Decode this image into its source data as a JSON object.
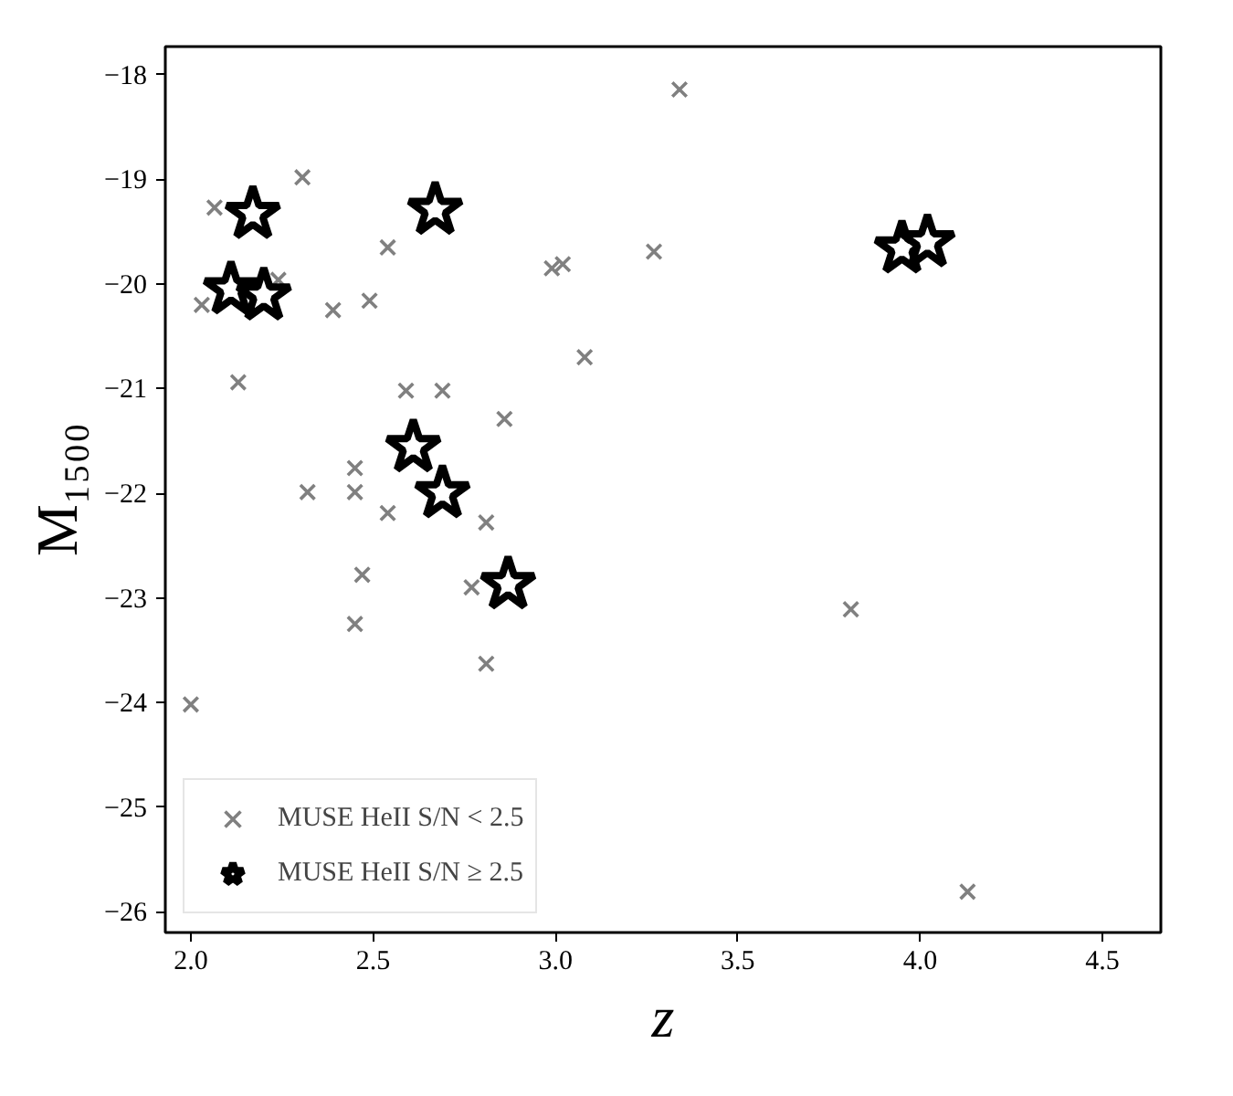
{
  "chart_data": {
    "type": "scatter",
    "xlabel": "z",
    "ylabel": "M₁₅₀₀",
    "xlim": [
      1.93,
      4.66
    ],
    "ylim": [
      -26.2,
      -17.73
    ],
    "xticks": [
      {
        "value": 2,
        "label": "2.0"
      },
      2.5,
      {
        "value": 3,
        "label": "3.0"
      },
      3.5,
      {
        "value": 4,
        "label": "4.0"
      },
      4.5
    ],
    "yticks": [
      {
        "value": -18,
        "label": "−18"
      },
      {
        "value": -19,
        "label": "−19"
      },
      {
        "value": -20,
        "label": "−20"
      },
      {
        "value": -21,
        "label": "−21"
      },
      {
        "value": -22,
        "label": "−22"
      },
      {
        "value": -23,
        "label": "−23"
      },
      {
        "value": -24,
        "label": "−24"
      },
      {
        "value": -25,
        "label": "−25"
      },
      {
        "value": -26,
        "label": "−26"
      }
    ],
    "grid": false,
    "legend": "bottom left",
    "series": [
      {
        "name": "MUSE HeII S/N < 2.5",
        "color": "#808080",
        "marker": "cross",
        "x": [
          2.065,
          2.306,
          2.03,
          2.24,
          2.54,
          2.39,
          2.49,
          2.13,
          2.59,
          2.69,
          2.86,
          2.99,
          3.02,
          3.27,
          3.08,
          3.34,
          2.45,
          2.32,
          2.45,
          2.54,
          2.81,
          2.47,
          2.77,
          2.45,
          2.81,
          2.0,
          3.81,
          4.13
        ],
        "values": [
          -19.27,
          -18.98,
          -20.2,
          -19.96,
          -19.65,
          -20.25,
          -20.16,
          -20.94,
          -21.02,
          -21.02,
          -21.29,
          -19.85,
          -19.81,
          -19.69,
          -20.7,
          -18.14,
          -21.76,
          -21.99,
          -21.99,
          -22.19,
          -22.28,
          -22.78,
          -22.9,
          -23.25,
          -23.63,
          -24.02,
          -23.11,
          -25.81
        ]
      },
      {
        "name": "MUSE HeII S/N ≥ 2.5",
        "color": "#000000",
        "marker": "star",
        "x": [
          2.17,
          2.67,
          2.11,
          2.2,
          2.61,
          2.69,
          2.87,
          3.95,
          4.02
        ],
        "values": [
          -19.33,
          -19.29,
          -20.05,
          -20.11,
          -21.56,
          -22.0,
          -22.87,
          -19.66,
          -19.6
        ]
      }
    ]
  }
}
